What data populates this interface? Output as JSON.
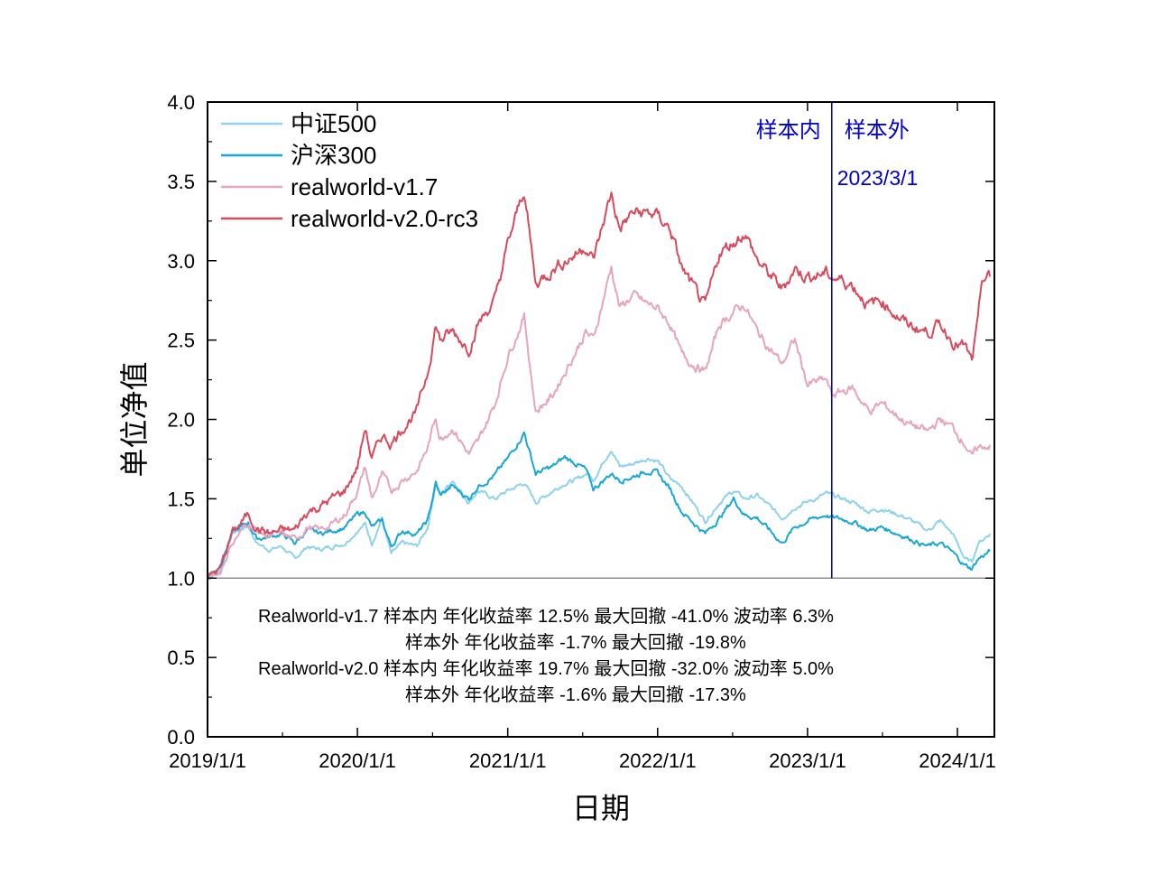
{
  "chart_data": {
    "type": "line",
    "title": "",
    "xlabel": "日期",
    "ylabel": "单位净值",
    "ylim": [
      0.0,
      4.0
    ],
    "yticks": [
      "0.0",
      "0.5",
      "1.0",
      "1.5",
      "2.0",
      "2.5",
      "3.0",
      "3.5",
      "4.0"
    ],
    "xlim": [
      "2019-01-01",
      "2024-03-31"
    ],
    "xticks": [
      "2019/1/1",
      "2020/1/1",
      "2021/1/1",
      "2022/1/1",
      "2023/1/1",
      "2024/1/1"
    ],
    "baseline": 1.0,
    "legend_position": "top-left",
    "grid": false,
    "series": [
      {
        "name": "中证500",
        "color": "#8fd3ea",
        "points": [
          [
            "2019-01-01",
            1.0
          ],
          [
            "2019-02-01",
            1.05
          ],
          [
            "2019-03-01",
            1.28
          ],
          [
            "2019-04-10",
            1.33
          ],
          [
            "2019-05-01",
            1.22
          ],
          [
            "2019-06-01",
            1.18
          ],
          [
            "2019-07-01",
            1.2
          ],
          [
            "2019-08-01",
            1.12
          ],
          [
            "2019-09-01",
            1.2
          ],
          [
            "2019-10-01",
            1.18
          ],
          [
            "2019-11-01",
            1.2
          ],
          [
            "2019-12-01",
            1.22
          ],
          [
            "2020-01-01",
            1.3
          ],
          [
            "2020-01-20",
            1.34
          ],
          [
            "2020-02-05",
            1.22
          ],
          [
            "2020-03-01",
            1.38
          ],
          [
            "2020-03-23",
            1.15
          ],
          [
            "2020-04-20",
            1.22
          ],
          [
            "2020-05-25",
            1.2
          ],
          [
            "2020-06-20",
            1.32
          ],
          [
            "2020-07-10",
            1.6
          ],
          [
            "2020-07-20",
            1.52
          ],
          [
            "2020-08-20",
            1.62
          ],
          [
            "2020-09-28",
            1.48
          ],
          [
            "2020-10-20",
            1.55
          ],
          [
            "2020-12-01",
            1.5
          ],
          [
            "2021-01-01",
            1.55
          ],
          [
            "2021-02-10",
            1.6
          ],
          [
            "2021-03-10",
            1.48
          ],
          [
            "2021-04-20",
            1.55
          ],
          [
            "2021-05-20",
            1.6
          ],
          [
            "2021-06-20",
            1.62
          ],
          [
            "2021-07-10",
            1.66
          ],
          [
            "2021-07-28",
            1.62
          ],
          [
            "2021-09-10",
            1.82
          ],
          [
            "2021-10-01",
            1.7
          ],
          [
            "2021-11-01",
            1.72
          ],
          [
            "2021-12-10",
            1.76
          ],
          [
            "2022-01-01",
            1.74
          ],
          [
            "2022-02-01",
            1.62
          ],
          [
            "2022-03-01",
            1.58
          ],
          [
            "2022-04-27",
            1.36
          ],
          [
            "2022-06-01",
            1.48
          ],
          [
            "2022-07-05",
            1.55
          ],
          [
            "2022-08-01",
            1.5
          ],
          [
            "2022-09-01",
            1.52
          ],
          [
            "2022-10-31",
            1.38
          ],
          [
            "2022-12-01",
            1.45
          ],
          [
            "2023-01-01",
            1.48
          ],
          [
            "2023-02-15",
            1.53
          ],
          [
            "2023-03-01",
            1.52
          ],
          [
            "2023-04-20",
            1.48
          ],
          [
            "2023-05-31",
            1.42
          ],
          [
            "2023-07-01",
            1.44
          ],
          [
            "2023-08-30",
            1.38
          ],
          [
            "2023-10-20",
            1.3
          ],
          [
            "2023-11-20",
            1.36
          ],
          [
            "2023-12-20",
            1.28
          ],
          [
            "2024-01-20",
            1.12
          ],
          [
            "2024-02-05",
            1.1
          ],
          [
            "2024-02-20",
            1.22
          ],
          [
            "2024-03-20",
            1.28
          ]
        ]
      },
      {
        "name": "沪深300",
        "color": "#17a7d8",
        "points": [
          [
            "2019-01-01",
            1.0
          ],
          [
            "2019-02-01",
            1.08
          ],
          [
            "2019-03-01",
            1.28
          ],
          [
            "2019-04-10",
            1.35
          ],
          [
            "2019-05-01",
            1.25
          ],
          [
            "2019-06-01",
            1.26
          ],
          [
            "2019-07-01",
            1.28
          ],
          [
            "2019-08-01",
            1.22
          ],
          [
            "2019-09-01",
            1.3
          ],
          [
            "2019-10-01",
            1.28
          ],
          [
            "2019-11-01",
            1.3
          ],
          [
            "2019-12-01",
            1.32
          ],
          [
            "2020-01-01",
            1.4
          ],
          [
            "2020-01-20",
            1.42
          ],
          [
            "2020-02-05",
            1.32
          ],
          [
            "2020-03-01",
            1.36
          ],
          [
            "2020-03-23",
            1.2
          ],
          [
            "2020-04-20",
            1.3
          ],
          [
            "2020-05-25",
            1.28
          ],
          [
            "2020-06-20",
            1.36
          ],
          [
            "2020-07-10",
            1.6
          ],
          [
            "2020-07-20",
            1.52
          ],
          [
            "2020-08-20",
            1.58
          ],
          [
            "2020-09-28",
            1.5
          ],
          [
            "2020-10-20",
            1.58
          ],
          [
            "2020-12-01",
            1.65
          ],
          [
            "2021-01-01",
            1.75
          ],
          [
            "2021-02-10",
            1.92
          ],
          [
            "2021-03-10",
            1.66
          ],
          [
            "2021-04-20",
            1.7
          ],
          [
            "2021-05-20",
            1.76
          ],
          [
            "2021-06-20",
            1.72
          ],
          [
            "2021-07-10",
            1.68
          ],
          [
            "2021-07-28",
            1.56
          ],
          [
            "2021-09-10",
            1.66
          ],
          [
            "2021-10-01",
            1.62
          ],
          [
            "2021-11-01",
            1.64
          ],
          [
            "2021-12-10",
            1.68
          ],
          [
            "2022-01-01",
            1.66
          ],
          [
            "2022-02-01",
            1.56
          ],
          [
            "2022-03-01",
            1.42
          ],
          [
            "2022-04-27",
            1.28
          ],
          [
            "2022-06-01",
            1.38
          ],
          [
            "2022-07-05",
            1.5
          ],
          [
            "2022-08-01",
            1.4
          ],
          [
            "2022-09-01",
            1.38
          ],
          [
            "2022-10-31",
            1.22
          ],
          [
            "2022-12-01",
            1.32
          ],
          [
            "2023-01-01",
            1.36
          ],
          [
            "2023-02-15",
            1.4
          ],
          [
            "2023-03-01",
            1.38
          ],
          [
            "2023-04-20",
            1.36
          ],
          [
            "2023-05-31",
            1.3
          ],
          [
            "2023-07-01",
            1.32
          ],
          [
            "2023-08-30",
            1.26
          ],
          [
            "2023-10-20",
            1.2
          ],
          [
            "2023-11-20",
            1.22
          ],
          [
            "2023-12-20",
            1.16
          ],
          [
            "2024-01-20",
            1.08
          ],
          [
            "2024-02-05",
            1.06
          ],
          [
            "2024-02-20",
            1.12
          ],
          [
            "2024-03-20",
            1.17
          ]
        ]
      },
      {
        "name": "realworld-v1.7",
        "color": "#e8a3bd",
        "points": [
          [
            "2019-01-01",
            1.0
          ],
          [
            "2019-02-01",
            1.04
          ],
          [
            "2019-03-01",
            1.22
          ],
          [
            "2019-04-10",
            1.35
          ],
          [
            "2019-05-01",
            1.3
          ],
          [
            "2019-06-01",
            1.26
          ],
          [
            "2019-07-01",
            1.28
          ],
          [
            "2019-08-01",
            1.24
          ],
          [
            "2019-09-01",
            1.32
          ],
          [
            "2019-10-01",
            1.3
          ],
          [
            "2019-11-01",
            1.34
          ],
          [
            "2019-12-01",
            1.4
          ],
          [
            "2020-01-01",
            1.55
          ],
          [
            "2020-01-20",
            1.7
          ],
          [
            "2020-02-05",
            1.5
          ],
          [
            "2020-03-01",
            1.65
          ],
          [
            "2020-03-23",
            1.55
          ],
          [
            "2020-04-20",
            1.62
          ],
          [
            "2020-05-25",
            1.68
          ],
          [
            "2020-06-20",
            1.82
          ],
          [
            "2020-07-10",
            2.02
          ],
          [
            "2020-07-20",
            1.88
          ],
          [
            "2020-08-20",
            1.95
          ],
          [
            "2020-09-28",
            1.78
          ],
          [
            "2020-10-20",
            1.85
          ],
          [
            "2020-12-01",
            2.1
          ],
          [
            "2021-01-01",
            2.4
          ],
          [
            "2021-02-10",
            2.65
          ],
          [
            "2021-03-10",
            2.05
          ],
          [
            "2021-04-20",
            2.15
          ],
          [
            "2021-05-20",
            2.3
          ],
          [
            "2021-06-20",
            2.45
          ],
          [
            "2021-07-10",
            2.55
          ],
          [
            "2021-07-28",
            2.5
          ],
          [
            "2021-09-10",
            2.96
          ],
          [
            "2021-10-01",
            2.7
          ],
          [
            "2021-11-01",
            2.78
          ],
          [
            "2021-12-10",
            2.72
          ],
          [
            "2022-01-01",
            2.7
          ],
          [
            "2022-02-01",
            2.6
          ],
          [
            "2022-03-01",
            2.4
          ],
          [
            "2022-04-27",
            2.3
          ],
          [
            "2022-06-01",
            2.6
          ],
          [
            "2022-07-05",
            2.68
          ],
          [
            "2022-08-01",
            2.72
          ],
          [
            "2022-09-01",
            2.55
          ],
          [
            "2022-10-31",
            2.35
          ],
          [
            "2022-12-01",
            2.5
          ],
          [
            "2023-01-01",
            2.22
          ],
          [
            "2023-02-15",
            2.25
          ],
          [
            "2023-03-01",
            2.15
          ],
          [
            "2023-04-20",
            2.2
          ],
          [
            "2023-05-31",
            2.05
          ],
          [
            "2023-07-01",
            2.1
          ],
          [
            "2023-08-30",
            1.98
          ],
          [
            "2023-10-20",
            1.92
          ],
          [
            "2023-11-20",
            2.0
          ],
          [
            "2023-12-20",
            1.95
          ],
          [
            "2024-01-20",
            1.85
          ],
          [
            "2024-02-05",
            1.76
          ],
          [
            "2024-02-20",
            1.82
          ],
          [
            "2024-03-20",
            1.84
          ]
        ]
      },
      {
        "name": "realworld-v2.0-rc3",
        "color": "#d84a5c",
        "points": [
          [
            "2019-01-01",
            1.0
          ],
          [
            "2019-02-01",
            1.06
          ],
          [
            "2019-03-01",
            1.28
          ],
          [
            "2019-04-10",
            1.4
          ],
          [
            "2019-05-01",
            1.32
          ],
          [
            "2019-06-01",
            1.28
          ],
          [
            "2019-07-01",
            1.3
          ],
          [
            "2019-08-01",
            1.3
          ],
          [
            "2019-09-01",
            1.42
          ],
          [
            "2019-10-01",
            1.45
          ],
          [
            "2019-11-01",
            1.5
          ],
          [
            "2019-12-01",
            1.55
          ],
          [
            "2020-01-01",
            1.7
          ],
          [
            "2020-01-20",
            1.95
          ],
          [
            "2020-02-05",
            1.75
          ],
          [
            "2020-03-01",
            1.9
          ],
          [
            "2020-03-23",
            1.85
          ],
          [
            "2020-04-20",
            1.95
          ],
          [
            "2020-05-25",
            2.05
          ],
          [
            "2020-06-20",
            2.3
          ],
          [
            "2020-07-10",
            2.6
          ],
          [
            "2020-07-20",
            2.5
          ],
          [
            "2020-08-20",
            2.55
          ],
          [
            "2020-09-28",
            2.45
          ],
          [
            "2020-10-20",
            2.6
          ],
          [
            "2020-12-01",
            2.75
          ],
          [
            "2021-01-01",
            3.1
          ],
          [
            "2021-02-10",
            3.45
          ],
          [
            "2021-03-10",
            2.85
          ],
          [
            "2021-04-20",
            2.95
          ],
          [
            "2021-05-20",
            3.0
          ],
          [
            "2021-06-20",
            3.05
          ],
          [
            "2021-07-10",
            3.1
          ],
          [
            "2021-07-28",
            3.0
          ],
          [
            "2021-09-10",
            3.42
          ],
          [
            "2021-10-01",
            3.2
          ],
          [
            "2021-11-01",
            3.3
          ],
          [
            "2021-12-10",
            3.3
          ],
          [
            "2022-01-01",
            3.28
          ],
          [
            "2022-02-01",
            3.2
          ],
          [
            "2022-03-01",
            2.95
          ],
          [
            "2022-04-27",
            2.7
          ],
          [
            "2022-06-01",
            3.05
          ],
          [
            "2022-07-05",
            3.12
          ],
          [
            "2022-08-01",
            3.18
          ],
          [
            "2022-09-01",
            3.0
          ],
          [
            "2022-10-31",
            2.82
          ],
          [
            "2022-12-01",
            2.95
          ],
          [
            "2023-01-01",
            2.9
          ],
          [
            "2023-02-15",
            2.92
          ],
          [
            "2023-03-01",
            2.9
          ],
          [
            "2023-04-20",
            2.85
          ],
          [
            "2023-05-31",
            2.72
          ],
          [
            "2023-07-01",
            2.75
          ],
          [
            "2023-08-30",
            2.6
          ],
          [
            "2023-10-20",
            2.55
          ],
          [
            "2023-11-20",
            2.6
          ],
          [
            "2023-12-20",
            2.5
          ],
          [
            "2024-01-20",
            2.45
          ],
          [
            "2024-02-05",
            2.36
          ],
          [
            "2024-02-20",
            2.6
          ],
          [
            "2024-03-01",
            2.88
          ],
          [
            "2024-03-20",
            2.9
          ]
        ]
      }
    ],
    "split": {
      "date": "2023-03-01",
      "date_label": "2023/3/1",
      "left_label": "样本内",
      "right_label": "样本外",
      "color": "#00008b"
    },
    "stats_lines": [
      "Realworld-v1.7 样本内 年化收益率  12.5%  最大回撤 -41.0% 波动率 6.3%",
      "样本外 年化收益率 -1.7%  最大回撤 -19.8%",
      "Realworld-v2.0 样本内 年化收益率 19.7%  最大回撤 -32.0% 波动率 5.0%",
      "样本外 年化收益率 -1.6%  最大回撤 -17.3%"
    ]
  }
}
